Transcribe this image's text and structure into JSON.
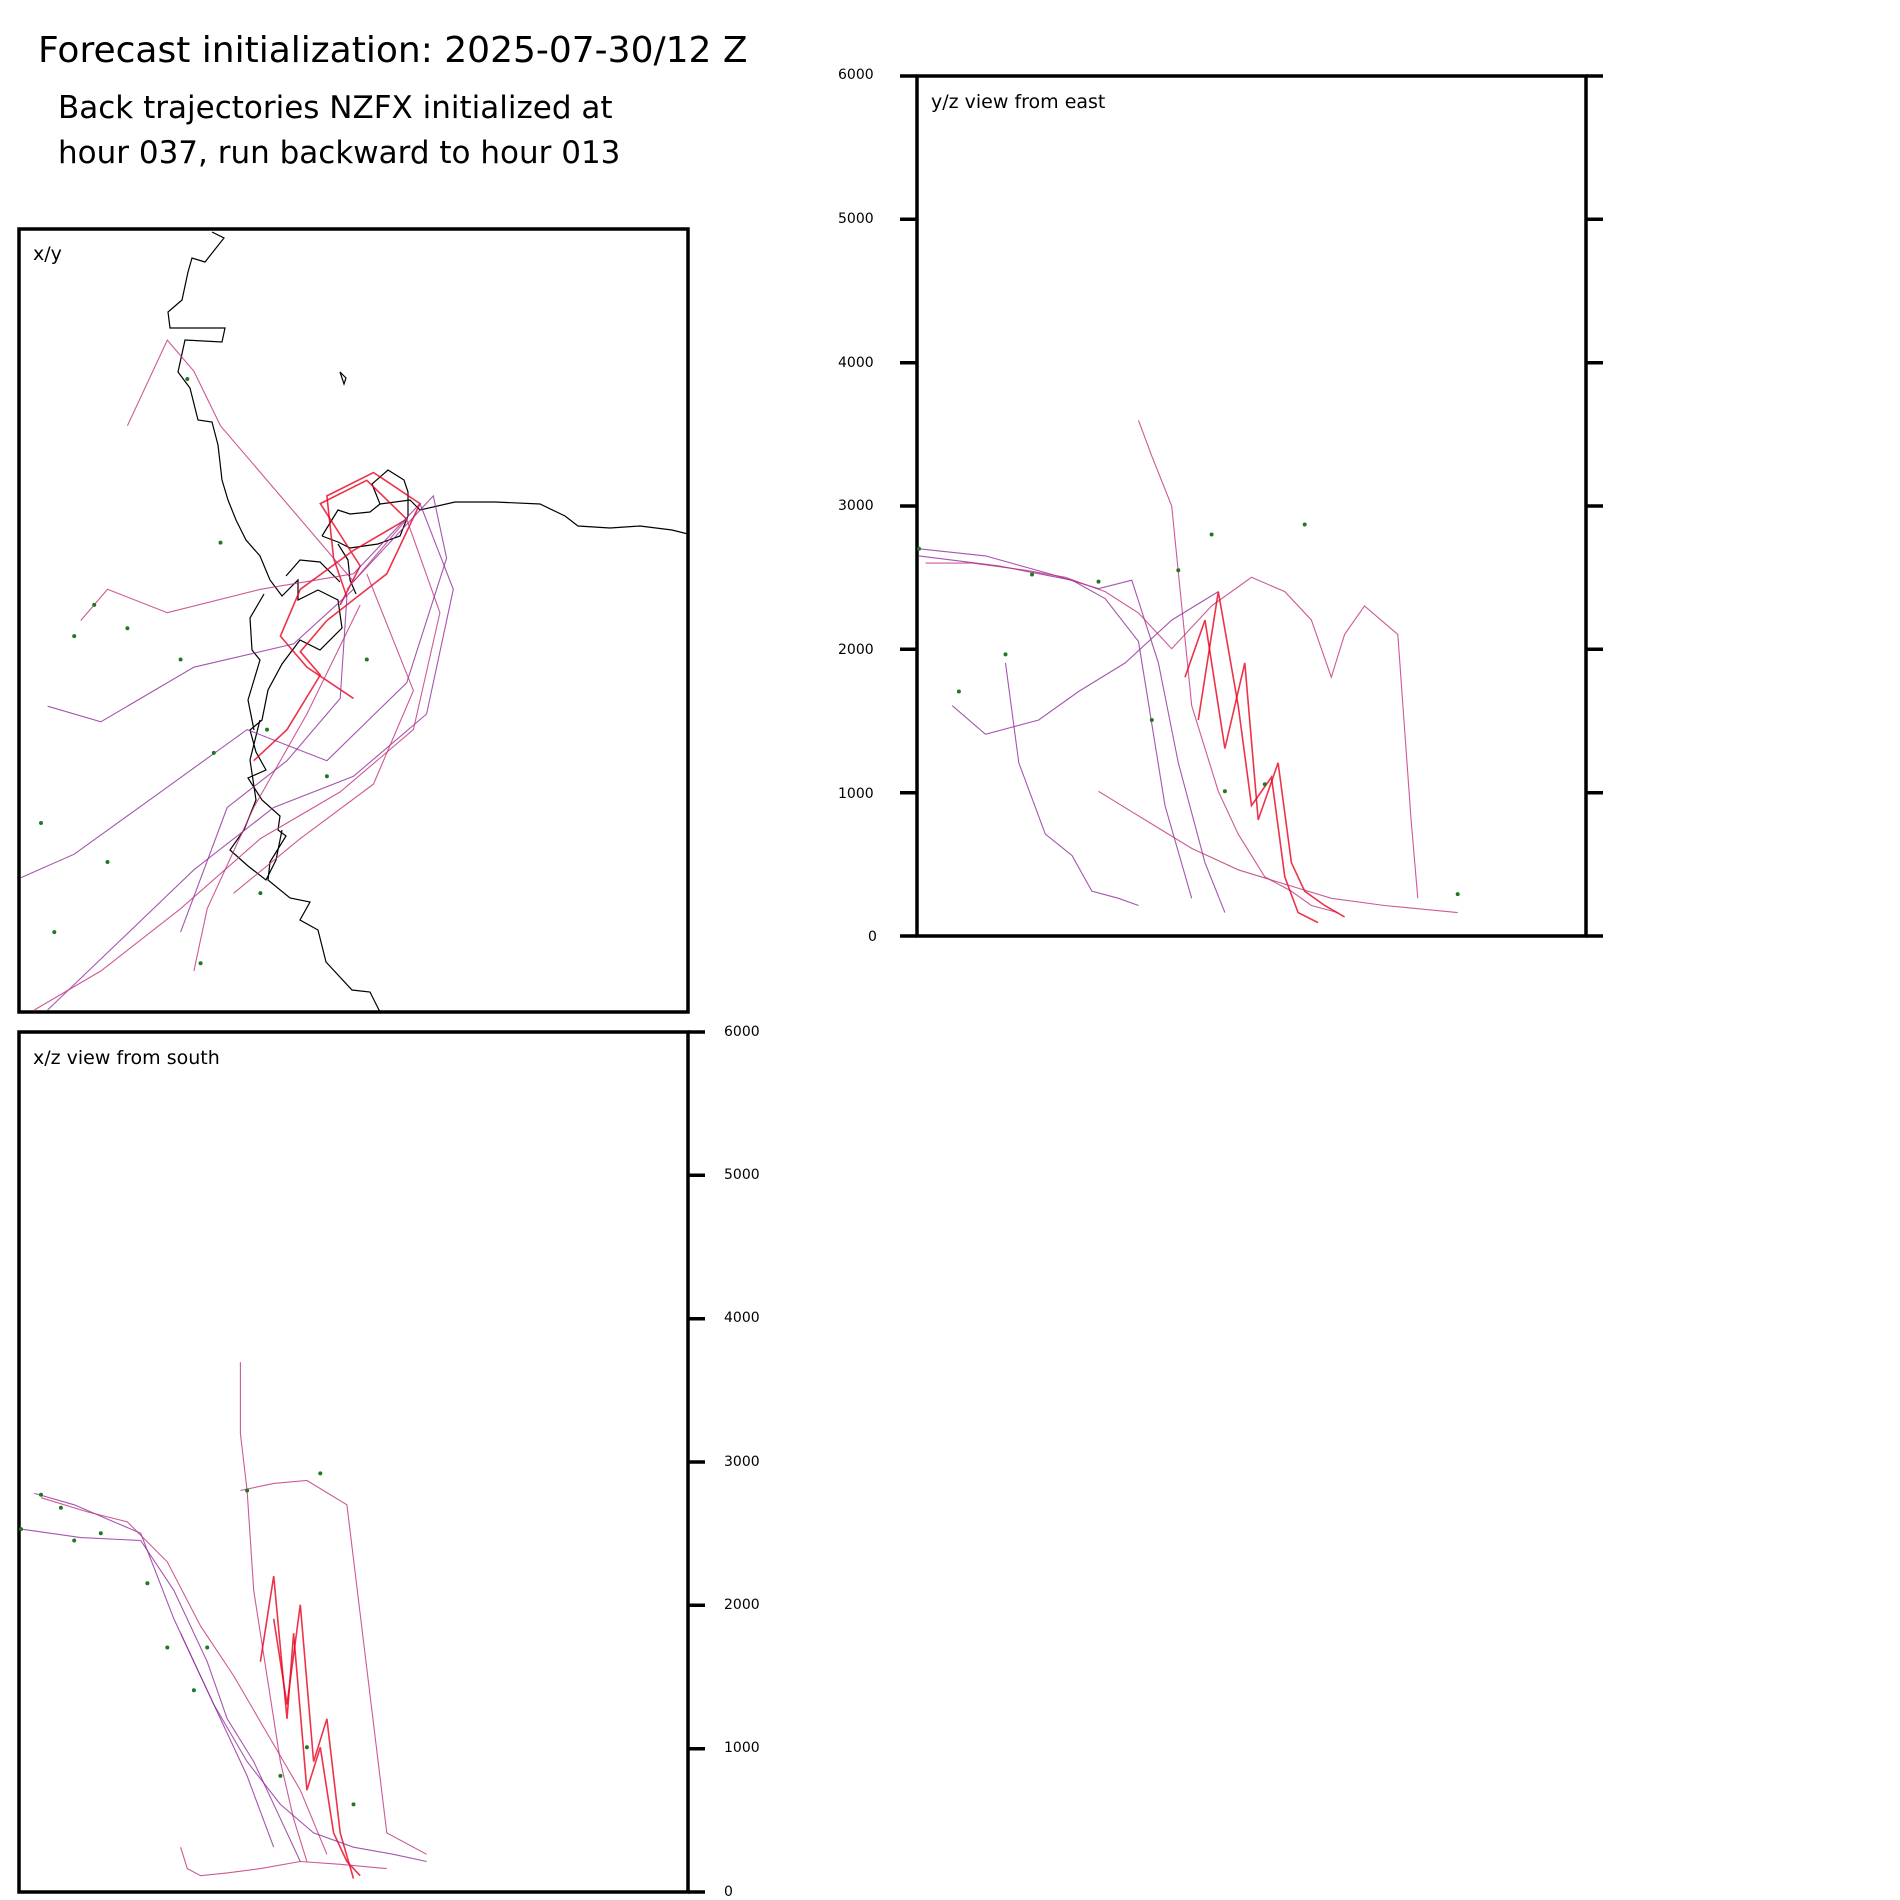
{
  "header": {
    "title": "Forecast initialization: 2025-07-30/12 Z",
    "subtitle_line1": "Back trajectories NZFX initialized at",
    "subtitle_line2": "hour 037, run backward to hour 013"
  },
  "colors": {
    "late_trajectory": "#e8001c",
    "early_trajectory": "#8e2b9a",
    "mixed_trajectory": "#c0307a",
    "start_marker": "#1f7a1f",
    "coastline": "#000000"
  },
  "chart_data": [
    {
      "type": "line",
      "panel": "x/y",
      "title": "x/y",
      "xlabel": "",
      "ylabel": "",
      "grid": false,
      "background_map": "coastline",
      "series": [
        {
          "color": "late",
          "x": [
            4.8,
            5.1,
            4.5,
            5.2,
            5.8,
            5.0,
            4.2,
            3.9,
            4.3,
            5.0
          ],
          "y": [
            5.2,
            5.7,
            6.5,
            6.8,
            6.3,
            5.9,
            5.4,
            4.8,
            4.4,
            4.0
          ]
        },
        {
          "color": "late",
          "x": [
            4.9,
            4.7,
            4.6,
            5.3,
            6.0,
            5.5,
            4.6
          ],
          "y": [
            5.3,
            5.8,
            6.6,
            6.9,
            6.5,
            5.6,
            5.0
          ]
        },
        {
          "color": "early",
          "x": [
            5.0,
            6.2,
            6.4,
            5.8,
            4.6,
            3.4,
            2.1,
            0.8,
            0.0
          ],
          "y": [
            5.5,
            6.6,
            5.8,
            4.2,
            3.2,
            3.6,
            2.8,
            2.0,
            1.7
          ]
        },
        {
          "color": "early",
          "x": [
            5.0,
            6.0,
            6.5,
            6.1,
            5.0,
            3.8,
            2.6,
            1.5,
            0.4
          ],
          "y": [
            5.6,
            6.5,
            5.4,
            3.8,
            3.0,
            2.6,
            1.8,
            0.9,
            0.0
          ]
        },
        {
          "color": "mixed",
          "x": [
            4.9,
            5.8,
            6.3,
            5.9,
            4.8,
            3.6,
            2.4,
            1.2,
            0.2
          ],
          "y": [
            5.4,
            6.3,
            5.1,
            3.6,
            2.8,
            2.2,
            1.3,
            0.5,
            0.0
          ]
        },
        {
          "color": "mixed",
          "x": [
            5.0,
            4.0,
            3.0,
            2.6,
            2.2,
            1.6
          ],
          "y": [
            5.5,
            6.5,
            7.5,
            8.2,
            8.6,
            7.5
          ]
        },
        {
          "color": "mixed",
          "x": [
            5.0,
            3.6,
            2.2,
            1.3,
            0.9
          ],
          "y": [
            5.6,
            5.4,
            5.1,
            5.4,
            5.0
          ]
        },
        {
          "color": "early",
          "x": [
            5.0,
            4.1,
            2.6,
            1.2,
            0.4
          ],
          "y": [
            5.4,
            4.7,
            4.4,
            3.7,
            3.9
          ]
        },
        {
          "color": "mixed",
          "x": [
            5.1,
            4.3,
            3.5,
            2.8,
            2.6
          ],
          "y": [
            5.2,
            3.8,
            2.6,
            1.3,
            0.5
          ]
        },
        {
          "color": "early",
          "x": [
            4.9,
            4.8,
            4.0,
            3.1,
            2.4
          ],
          "y": [
            5.3,
            4.0,
            3.2,
            2.6,
            1.0
          ]
        },
        {
          "color": "mixed",
          "x": [
            5.2,
            5.9,
            5.3,
            4.2,
            3.2
          ],
          "y": [
            5.6,
            4.1,
            2.9,
            2.2,
            1.5
          ]
        },
        {
          "color": "late",
          "x": [
            4.6,
            4.2,
            4.5,
            4.0,
            3.5
          ],
          "y": [
            5.0,
            4.6,
            4.3,
            3.6,
            3.2
          ]
        }
      ],
      "start_points": {
        "x": [
          2.5,
          3.0,
          1.1,
          0.8,
          2.4,
          2.9,
          0.3,
          1.3,
          3.7,
          4.6,
          5.2,
          1.6,
          3.6,
          2.7,
          0.5
        ],
        "y": [
          8.1,
          6.0,
          5.2,
          4.8,
          4.5,
          3.3,
          2.4,
          1.9,
          3.6,
          3.0,
          4.5,
          4.9,
          1.5,
          0.6,
          1.0
        ]
      }
    },
    {
      "type": "line",
      "panel": "y/z",
      "title": "y/z view from east",
      "xlabel": "",
      "ylabel": "",
      "ylim": [
        0,
        6000
      ],
      "yticks": [
        "6000",
        "5000",
        "4000",
        "3000",
        "2000",
        "1000",
        "0"
      ],
      "grid": false,
      "series": [
        {
          "color": "early",
          "x": [
            0.0,
            1.0,
            2.0,
            2.7,
            3.2,
            3.6,
            3.9,
            4.3,
            4.6
          ],
          "y": [
            2700,
            2650,
            2520,
            2420,
            2480,
            1900,
            1200,
            500,
            150
          ]
        },
        {
          "color": "early",
          "x": [
            0.0,
            1.2,
            2.3,
            2.8,
            3.3,
            3.7,
            4.1
          ],
          "y": [
            2650,
            2580,
            2480,
            2350,
            2050,
            900,
            250
          ]
        },
        {
          "color": "mixed",
          "x": [
            0.1,
            0.8,
            1.6,
            2.2,
            2.8,
            3.3,
            3.8,
            4.4,
            5.0,
            5.5,
            5.9,
            6.2,
            6.4,
            6.7,
            7.2,
            7.4,
            7.5
          ],
          "y": [
            2600,
            2600,
            2550,
            2500,
            2400,
            2250,
            2000,
            2300,
            2500,
            2400,
            2200,
            1800,
            2100,
            2300,
            2100,
            800,
            250
          ]
        },
        {
          "color": "mixed",
          "x": [
            3.3,
            3.5,
            3.8,
            4.1,
            4.5,
            4.8,
            5.2,
            5.6,
            5.9,
            6.3
          ],
          "y": [
            3600,
            3350,
            3000,
            1600,
            1000,
            700,
            400,
            300,
            200,
            150
          ]
        },
        {
          "color": "late",
          "x": [
            4.0,
            4.3,
            4.6,
            4.9,
            5.1,
            5.4,
            5.6,
            5.8,
            6.1,
            6.4
          ],
          "y": [
            1800,
            2200,
            1300,
            1900,
            800,
            1200,
            500,
            300,
            200,
            120
          ]
        },
        {
          "color": "late",
          "x": [
            4.2,
            4.5,
            4.8,
            5.0,
            5.3,
            5.5,
            5.7,
            6.0
          ],
          "y": [
            1500,
            2400,
            1600,
            900,
            1100,
            400,
            150,
            80
          ]
        },
        {
          "color": "early",
          "x": [
            1.3,
            1.5,
            1.9,
            2.3,
            2.6,
            3.0,
            3.3
          ],
          "y": [
            1900,
            1200,
            700,
            550,
            300,
            250,
            200
          ]
        },
        {
          "color": "early",
          "x": [
            0.5,
            1.0,
            1.8,
            2.4,
            3.1,
            3.8,
            4.5
          ],
          "y": [
            1600,
            1400,
            1500,
            1700,
            1900,
            2200,
            2400
          ]
        },
        {
          "color": "mixed",
          "x": [
            2.7,
            3.4,
            4.1,
            4.8,
            5.5,
            6.2,
            7.0,
            8.1
          ],
          "y": [
            1000,
            800,
            600,
            450,
            350,
            250,
            200,
            150
          ]
        }
      ],
      "start_points": {
        "x": [
          0.0,
          1.7,
          2.7,
          3.9,
          4.4,
          5.8,
          3.5,
          1.3,
          0.6,
          4.6,
          5.2,
          8.1
        ],
        "y": [
          2700,
          2520,
          2470,
          2550,
          2800,
          2870,
          1500,
          1960,
          1700,
          1000,
          1050,
          280
        ]
      }
    },
    {
      "type": "line",
      "panel": "x/z",
      "title": "x/z view from south",
      "xlabel": "",
      "ylabel": "",
      "ylim": [
        0,
        6000
      ],
      "yticks": [
        "6000",
        "5000",
        "4000",
        "3000",
        "2000",
        "1000",
        "0"
      ],
      "grid": false,
      "series": [
        {
          "color": "early",
          "x": [
            0.0,
            0.9,
            1.8,
            2.3,
            2.8,
            3.1,
            3.5,
            3.9,
            4.2
          ],
          "y": [
            2530,
            2470,
            2450,
            2100,
            1600,
            1200,
            900,
            500,
            200
          ]
        },
        {
          "color": "early",
          "x": [
            0.2,
            0.8,
            1.3,
            1.8,
            2.3,
            2.9,
            3.4,
            3.8
          ],
          "y": [
            2780,
            2700,
            2600,
            2500,
            1900,
            1300,
            800,
            300
          ]
        },
        {
          "color": "mixed",
          "x": [
            0.3,
            1.0,
            1.6,
            2.2,
            2.7,
            3.2,
            3.7,
            4.2,
            4.6
          ],
          "y": [
            2750,
            2650,
            2580,
            2300,
            1850,
            1500,
            1100,
            700,
            250
          ]
        },
        {
          "color": "mixed",
          "x": [
            3.3,
            3.3,
            3.4,
            3.5,
            3.7,
            3.9,
            4.1,
            4.3
          ],
          "y": [
            3700,
            3200,
            2800,
            2100,
            1500,
            900,
            500,
            200
          ]
        },
        {
          "color": "late",
          "x": [
            3.6,
            3.8,
            4.0,
            4.1,
            4.3,
            4.5,
            4.7,
            4.9,
            5.1
          ],
          "y": [
            1600,
            2200,
            1200,
            1800,
            700,
            1000,
            400,
            200,
            100
          ]
        },
        {
          "color": "late",
          "x": [
            3.8,
            4.0,
            4.2,
            4.4,
            4.6,
            4.8,
            5.0
          ],
          "y": [
            1900,
            1300,
            2000,
            900,
            1200,
            400,
            80
          ]
        },
        {
          "color": "early",
          "x": [
            2.4,
            2.9,
            3.4,
            3.9,
            4.4,
            5.0,
            5.6,
            6.1
          ],
          "y": [
            1800,
            1300,
            900,
            600,
            400,
            300,
            250,
            200
          ]
        },
        {
          "color": "mixed",
          "x": [
            3.3,
            3.8,
            4.3,
            4.9,
            5.5,
            6.1
          ],
          "y": [
            2800,
            2850,
            2870,
            2700,
            400,
            250
          ]
        },
        {
          "color": "mixed",
          "x": [
            2.4,
            2.5,
            2.7,
            3.1,
            3.6,
            4.2,
            4.8,
            5.5
          ],
          "y": [
            300,
            150,
            100,
            120,
            150,
            200,
            180,
            150
          ]
        }
      ],
      "start_points": {
        "x": [
          0.0,
          0.3,
          0.6,
          1.2,
          2.2,
          3.4,
          4.5,
          2.6,
          2.8,
          3.9,
          4.3,
          5.0,
          1.9,
          0.8
        ],
        "y": [
          2530,
          2770,
          2680,
          2500,
          1700,
          2800,
          2920,
          1400,
          1700,
          800,
          1000,
          600,
          2150,
          2450
        ]
      }
    }
  ]
}
